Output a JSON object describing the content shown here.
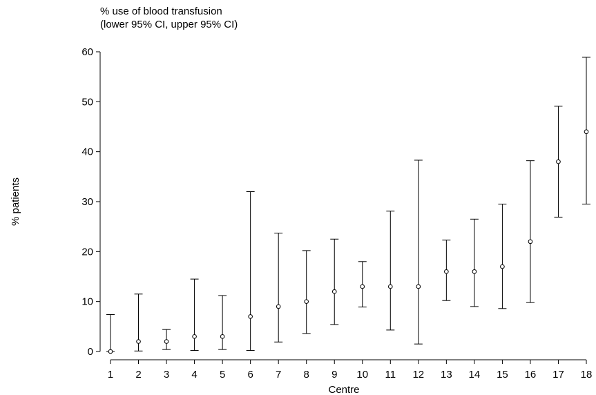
{
  "chart_data": {
    "type": "scatter",
    "title_line1": "% use of blood transfusion",
    "title_line2": "(lower 95% CI, upper 95% CI)",
    "xlabel": "Centre",
    "ylabel": "% patients",
    "ylim": [
      0,
      60
    ],
    "yticks": [
      0,
      10,
      20,
      30,
      40,
      50,
      60
    ],
    "categories": [
      "1",
      "2",
      "3",
      "4",
      "5",
      "6",
      "7",
      "8",
      "9",
      "10",
      "11",
      "12",
      "13",
      "14",
      "15",
      "16",
      "17",
      "18"
    ],
    "series": [
      {
        "values": [
          0,
          2,
          2,
          3,
          3,
          7,
          9,
          10,
          12,
          13,
          13,
          13,
          16,
          16,
          17,
          22,
          38,
          44
        ],
        "lower": [
          0,
          0.1,
          0.4,
          0.2,
          0.4,
          0.2,
          1.9,
          3.6,
          5.4,
          8.9,
          4.3,
          1.5,
          10.2,
          9.0,
          8.6,
          9.8,
          26.9,
          29.5
        ],
        "upper": [
          7.4,
          11.5,
          4.4,
          14.5,
          11.2,
          32.0,
          23.7,
          20.2,
          22.5,
          18.0,
          28.1,
          38.3,
          22.3,
          26.5,
          29.5,
          38.2,
          49.1,
          58.9
        ]
      }
    ],
    "grid": false
  }
}
